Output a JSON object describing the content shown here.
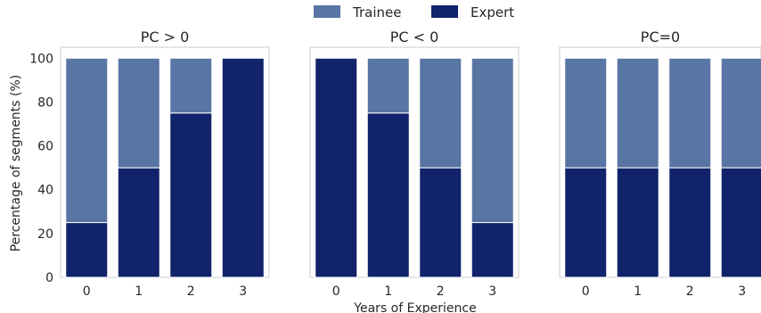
{
  "chart_data": {
    "type": "bar",
    "stacked": true,
    "percent": true,
    "xlabel": "Years of Experience",
    "ylabel": "Percentage of segments (%)",
    "ylim": [
      0,
      105
    ],
    "yticks": [
      0,
      20,
      40,
      60,
      80,
      100
    ],
    "grid": false,
    "legend": {
      "placement": "top-center",
      "entries": [
        {
          "name": "Trainee",
          "color": "#5975a4"
        },
        {
          "name": "Expert",
          "color": "#10236b"
        }
      ]
    },
    "panels": [
      {
        "title": "PC > 0",
        "categories": [
          "0",
          "1",
          "2",
          "3"
        ],
        "series": [
          {
            "name": "Expert",
            "values": [
              25,
              50,
              75,
              100
            ]
          },
          {
            "name": "Trainee",
            "values": [
              75,
              50,
              25,
              0
            ]
          }
        ]
      },
      {
        "title": "PC < 0",
        "categories": [
          "0",
          "1",
          "2",
          "3"
        ],
        "series": [
          {
            "name": "Expert",
            "values": [
              100,
              75,
              50,
              25
            ]
          },
          {
            "name": "Trainee",
            "values": [
              0,
              25,
              50,
              75
            ]
          }
        ]
      },
      {
        "title": "PC=0",
        "categories": [
          "0",
          "1",
          "2",
          "3"
        ],
        "series": [
          {
            "name": "Expert",
            "values": [
              50,
              50,
              50,
              50
            ]
          },
          {
            "name": "Trainee",
            "values": [
              50,
              50,
              50,
              50
            ]
          }
        ]
      }
    ]
  }
}
